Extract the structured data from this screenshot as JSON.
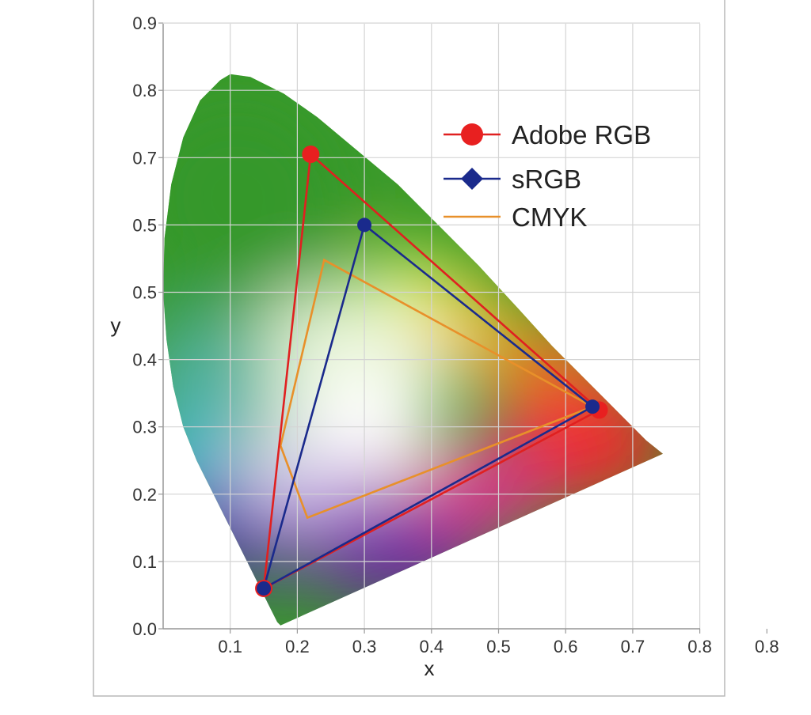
{
  "chart_data": {
    "type": "scatter",
    "title": "",
    "xlabel": "x",
    "ylabel": "y",
    "xlim": [
      0,
      0.8
    ],
    "ylim": [
      0,
      0.9
    ],
    "grid": true,
    "legend_position": "top-right",
    "x_tick_labels": [
      "0.1",
      "0.2",
      "0.3",
      "0.4",
      "0.5",
      "0.6",
      "0.7",
      "0.8",
      "0.8"
    ],
    "y_tick_labels": [
      "0.0",
      "0.1",
      "0.2",
      "0.3",
      "0.4",
      "0.5",
      "0.5",
      "0.7",
      "0.8",
      "0.9"
    ],
    "spectral_locus": [
      [
        0.175,
        0.005
      ],
      [
        0.17,
        0.01
      ],
      [
        0.16,
        0.03
      ],
      [
        0.145,
        0.06
      ],
      [
        0.125,
        0.1
      ],
      [
        0.1,
        0.15
      ],
      [
        0.075,
        0.2
      ],
      [
        0.05,
        0.25
      ],
      [
        0.03,
        0.3
      ],
      [
        0.015,
        0.36
      ],
      [
        0.005,
        0.43
      ],
      [
        0.0,
        0.5
      ],
      [
        0.002,
        0.58
      ],
      [
        0.012,
        0.66
      ],
      [
        0.03,
        0.73
      ],
      [
        0.055,
        0.785
      ],
      [
        0.085,
        0.815
      ],
      [
        0.1,
        0.824
      ],
      [
        0.13,
        0.82
      ],
      [
        0.18,
        0.795
      ],
      [
        0.23,
        0.76
      ],
      [
        0.29,
        0.71
      ],
      [
        0.35,
        0.66
      ],
      [
        0.41,
        0.6
      ],
      [
        0.47,
        0.54
      ],
      [
        0.53,
        0.475
      ],
      [
        0.58,
        0.42
      ],
      [
        0.63,
        0.37
      ],
      [
        0.68,
        0.32
      ],
      [
        0.72,
        0.28
      ],
      [
        0.745,
        0.26
      ],
      [
        0.175,
        0.005
      ]
    ],
    "series": [
      {
        "name": "Adobe RGB",
        "color": "#e02020",
        "marker": "circle",
        "points": [
          [
            0.22,
            0.705
          ],
          [
            0.65,
            0.325
          ],
          [
            0.15,
            0.06
          ]
        ]
      },
      {
        "name": "sRGB",
        "color": "#1a2a8c",
        "marker": "diamond",
        "points": [
          [
            0.3,
            0.6
          ],
          [
            0.64,
            0.33
          ],
          [
            0.15,
            0.06
          ]
        ]
      },
      {
        "name": "CMYK",
        "color": "#e8902a",
        "marker": "none",
        "points": [
          [
            0.24,
            0.548
          ],
          [
            0.64,
            0.33
          ],
          [
            0.215,
            0.165
          ],
          [
            0.175,
            0.272
          ]
        ]
      }
    ]
  }
}
